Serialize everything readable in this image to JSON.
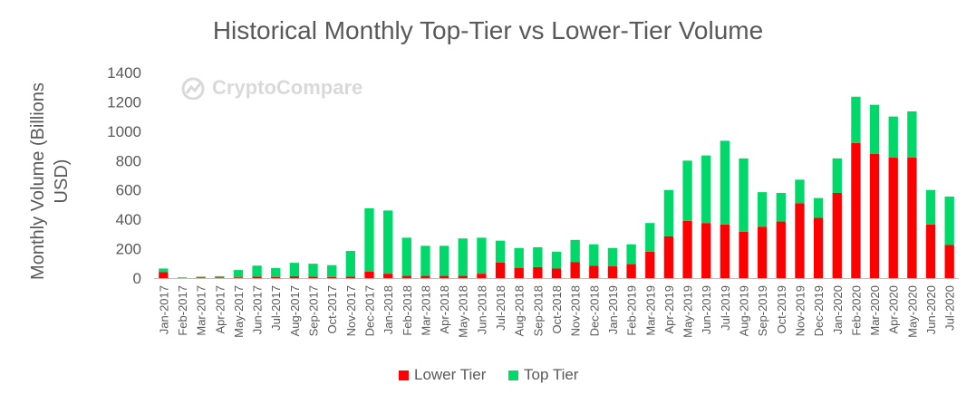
{
  "title": "Historical Monthly Top-Tier vs Lower-Tier Volume",
  "watermark": "CryptoCompare",
  "colors": {
    "lower": "#ff0000",
    "top": "#00d86a",
    "text": "#595959",
    "axis": "#bfbfbf"
  },
  "chart_data": {
    "type": "bar",
    "stacked": true,
    "title": "Historical Monthly Top-Tier vs Lower-Tier Volume",
    "ylabel_lines": [
      "Monthly Volume (Billions",
      "USD)"
    ],
    "xlabel": "",
    "ylim": [
      0,
      1400
    ],
    "yticks": [
      0,
      200,
      400,
      600,
      800,
      1000,
      1200,
      1400
    ],
    "grid": false,
    "legend_position": "bottom",
    "categories": [
      "Jan-2017",
      "Feb-2017",
      "Mar-2017",
      "Apr-2017",
      "May-2017",
      "Jun-2017",
      "Jul-2017",
      "Aug-2017",
      "Sep-2017",
      "Oct-2017",
      "Nov-2017",
      "Dec-2017",
      "Jan-2018",
      "Feb-2018",
      "Mar-2018",
      "Apr-2018",
      "May-2018",
      "Jun-2018",
      "Jul-2018",
      "Aug-2018",
      "Sep-2018",
      "Oct-2018",
      "Nov-2018",
      "Dec-2018",
      "Jan-2019",
      "Feb-2019",
      "Mar-2019",
      "Apr-2019",
      "May-2019",
      "Jun-2019",
      "Jul-2019",
      "Aug-2019",
      "Sep-2019",
      "Oct-2019",
      "Nov-2019",
      "Dec-2019",
      "Jan-2020",
      "Feb-2020",
      "Mar-2020",
      "Apr-2020",
      "May-2020",
      "Jun-2020",
      "Jul-2020"
    ],
    "series": [
      {
        "name": "Lower Tier",
        "color": "#ff0000",
        "values": [
          40,
          2,
          3,
          3,
          5,
          10,
          8,
          12,
          10,
          8,
          10,
          45,
          30,
          15,
          15,
          15,
          15,
          30,
          105,
          70,
          75,
          65,
          110,
          85,
          80,
          95,
          180,
          285,
          390,
          375,
          365,
          315,
          350,
          385,
          510,
          410,
          580,
          920,
          845,
          820,
          820,
          365,
          225
        ]
      },
      {
        "name": "Top Tier",
        "color": "#00d86a",
        "values": [
          25,
          3,
          7,
          10,
          50,
          75,
          60,
          92,
          88,
          80,
          175,
          430,
          430,
          260,
          205,
          205,
          255,
          245,
          150,
          135,
          135,
          115,
          150,
          145,
          125,
          135,
          195,
          315,
          410,
          460,
          570,
          500,
          235,
          195,
          160,
          135,
          235,
          315,
          335,
          280,
          315,
          235,
          330
        ]
      }
    ]
  },
  "legend": [
    {
      "label": "Lower Tier",
      "color": "#ff0000"
    },
    {
      "label": "Top Tier",
      "color": "#00d86a"
    }
  ]
}
